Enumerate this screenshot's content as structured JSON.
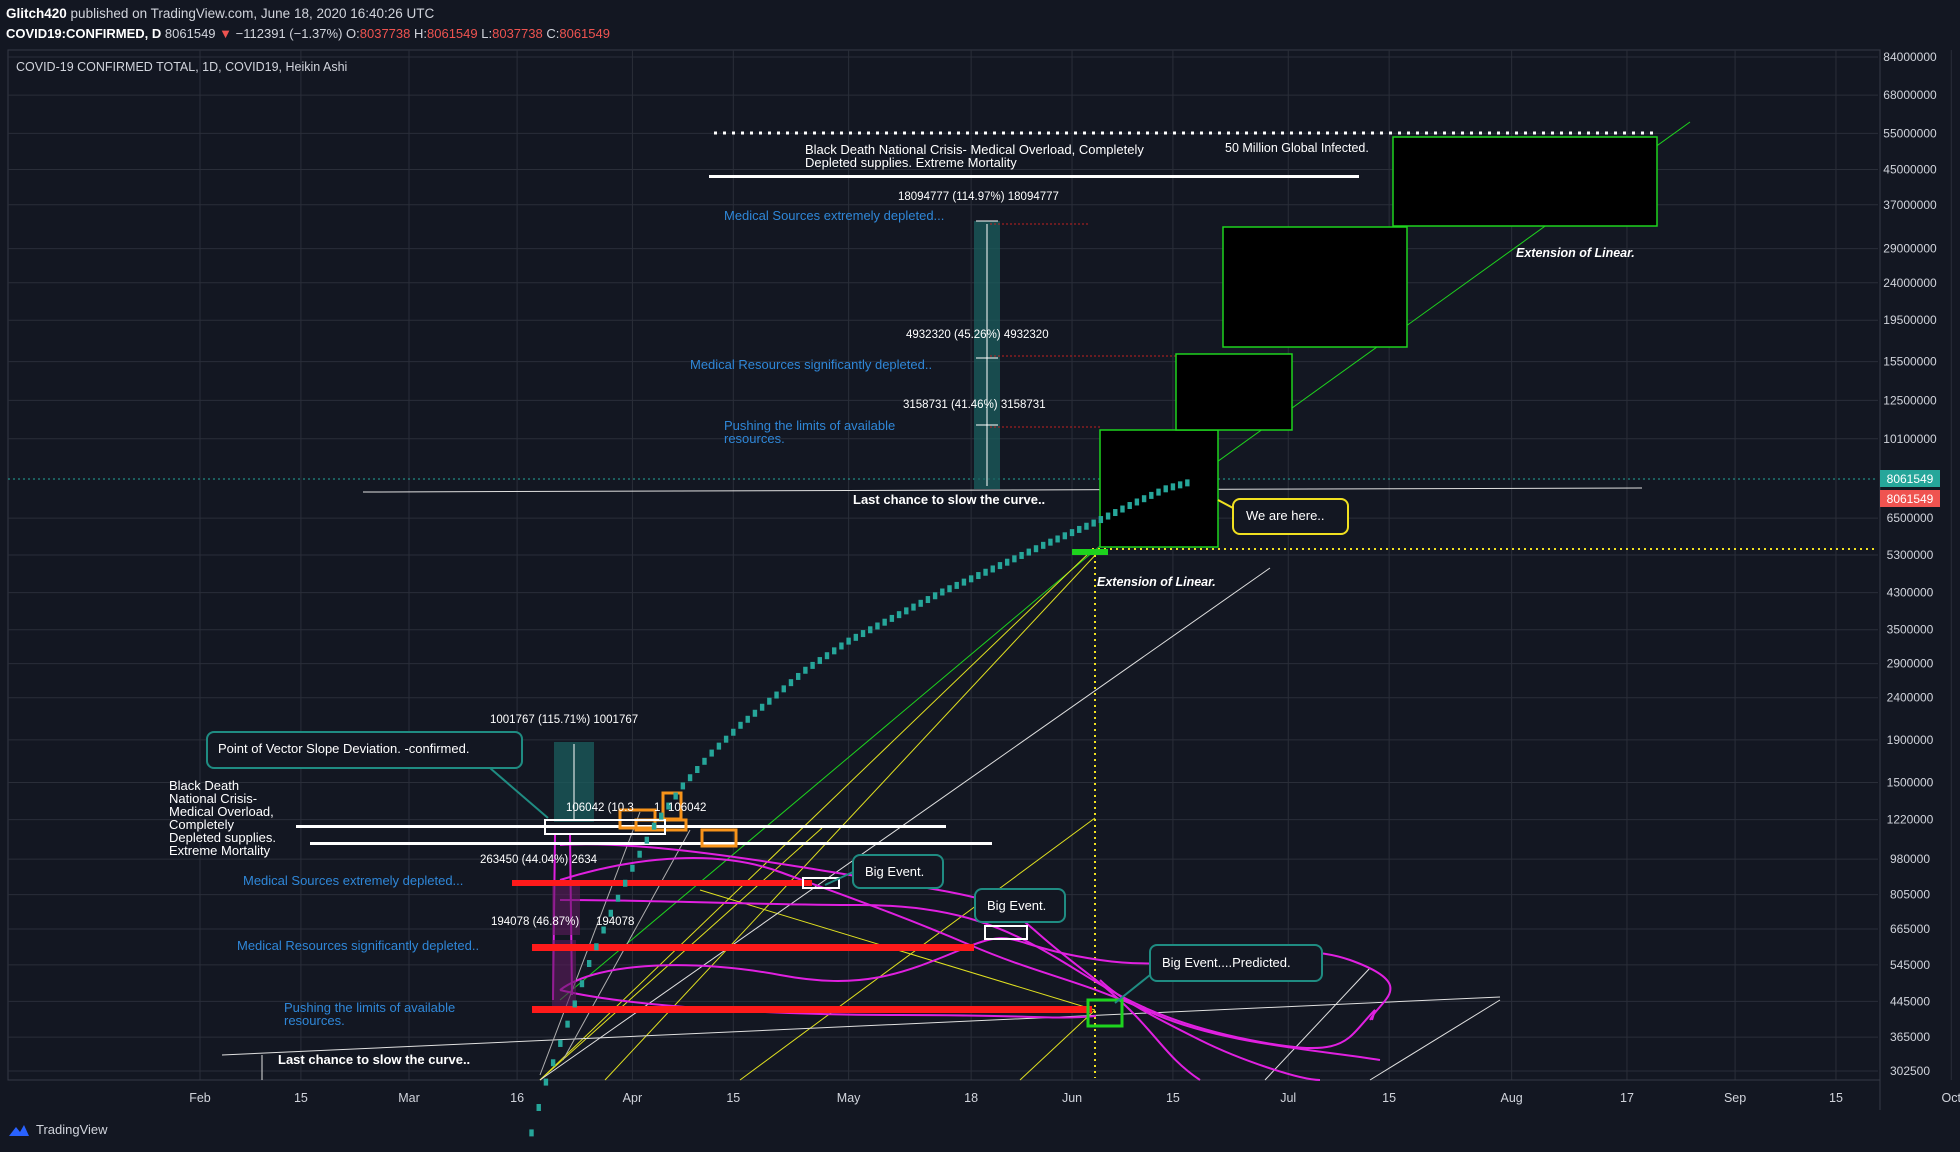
{
  "header": {
    "publisher": "Glitch420",
    "published_text": "published on TradingView.com, June 18, 2020 16:40:26 UTC",
    "symbol": "COVID19:CONFIRMED, D",
    "last": "8061549",
    "change": "−112391 (−1.37%)",
    "o_label": "O:",
    "o": "8037738",
    "h_label": "H:",
    "h": "8061549",
    "l_label": "L:",
    "l": "8037738",
    "c_label": "C:",
    "c": "8061549"
  },
  "footer": {
    "brand": "TradingView"
  },
  "colors": {
    "background": "#131722",
    "grid": "#2a2e39",
    "candle": "#26a69a",
    "green": "#1ed31e",
    "magenta": "#e020e0",
    "blue_text": "#2f87d8",
    "red": "#ff1a1a",
    "orange": "#f7931a",
    "yellow": "#f0e020",
    "teal_callout": "#1f8c82"
  },
  "chart_data": {
    "type": "line",
    "style": "Heikin Ashi",
    "title": "COVID-19 CONFIRMED TOTAL, 1D, COVID19, Heikin Ashi",
    "y_scale": "log",
    "grid": true,
    "x_tick_labels": [
      "Feb",
      "15",
      "Mar",
      "16",
      "Apr",
      "15",
      "May",
      "18",
      "Jun",
      "15",
      "Jul",
      "15",
      "Aug",
      "17",
      "Sep",
      "15",
      "Oct"
    ],
    "y_tick_labels": [
      "84000000",
      "68000000",
      "55000000",
      "45000000",
      "37000000",
      "29000000",
      "24000000",
      "19500000",
      "15500000",
      "12500000",
      "10100000",
      "6500000",
      "5300000",
      "4300000",
      "3500000",
      "2900000",
      "2400000",
      "1900000",
      "1500000",
      "1220000",
      "980000",
      "805000",
      "665000",
      "545000",
      "445000",
      "365000",
      "302500"
    ],
    "last_price_label": "8061549",
    "last_price_label_red": "8061549",
    "series": [
      {
        "name": "COVID-19 CONFIRMED TOTAL",
        "x": [
          "2020-03-17",
          "2020-03-20",
          "2020-03-23",
          "2020-03-26",
          "2020-03-29",
          "2020-04-01",
          "2020-04-04",
          "2020-04-08",
          "2020-04-12",
          "2020-04-16",
          "2020-04-20",
          "2020-04-25",
          "2020-05-01",
          "2020-05-07",
          "2020-05-14",
          "2020-05-21",
          "2020-05-28",
          "2020-06-04",
          "2020-06-10",
          "2020-06-14",
          "2020-06-17"
        ],
        "y": [
          190000,
          290000,
          400000,
          560000,
          740000,
          950000,
          1200000,
          1500000,
          1800000,
          2100000,
          2400000,
          2850000,
          3350000,
          3800000,
          4400000,
          5000000,
          5700000,
          6450000,
          7250000,
          7800000,
          8061549
        ]
      }
    ],
    "annotations": {
      "measures": [
        "18094777 (114.97%) 18094777",
        "4932320 (45.26%) 4932320",
        "3158731 (41.46%) 3158731",
        "1001767 (115.71%) 1001767",
        "106042 (10.3",
        "1",
        "106042",
        "263450 (44.04%) 2634",
        "194078 (46.87%)",
        "194078"
      ],
      "top_block_line1": "Black Death National Crisis- Medical Overload, Completely",
      "top_block_line2": "Depleted supplies. Extreme Mortality",
      "million_label": "50 Million Global Infected.",
      "upper_blue": [
        "Medical Sources extremely depleted...",
        "Medical Resources significantly depleted..",
        "Pushing the limits of available",
        "resources."
      ],
      "lower_blue": [
        "Medical Sources extremely depleted...",
        "Medical Resources significantly depleted..",
        "Pushing the limits of available",
        "resources."
      ],
      "black_death_lines": [
        "Black Death",
        "National Crisis-",
        "Medical Overload,",
        "Completely",
        "Depleted supplies.",
        "Extreme Mortality"
      ],
      "last_chance_upper": "Last chance to slow the curve..",
      "last_chance_lower": "Last chance to slow the curve..",
      "extension_upper": "Extension of Linear.",
      "extension_lower": "Extension of Linear.",
      "callouts": [
        "Point of Vector Slope Deviation. -confirmed.",
        "Big Event.",
        "Big Event.",
        "Big Event....Predicted.",
        "We are here.."
      ]
    }
  }
}
